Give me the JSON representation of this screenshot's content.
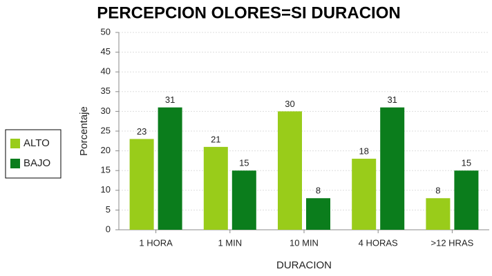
{
  "chart_data": {
    "type": "bar",
    "title": "PERCEPCION OLORES=SI DURACION",
    "x_label": "DURACION",
    "y_label": "Porcentaje",
    "categories": [
      "1 HORA",
      "1 MIN",
      "10 MIN",
      "4 HORAS",
      ">12 HRAS"
    ],
    "series": [
      {
        "name": "ALTO",
        "color": "#99cc1a",
        "values": [
          23,
          21,
          30,
          18,
          8
        ]
      },
      {
        "name": "BAJO",
        "color": "#0b7d1c",
        "values": [
          31,
          15,
          8,
          31,
          15
        ]
      }
    ],
    "ylim": [
      0,
      50
    ],
    "yticks": [
      0,
      5,
      10,
      15,
      20,
      25,
      30,
      35,
      40,
      45,
      50
    ],
    "grid": true,
    "legend": "left"
  }
}
